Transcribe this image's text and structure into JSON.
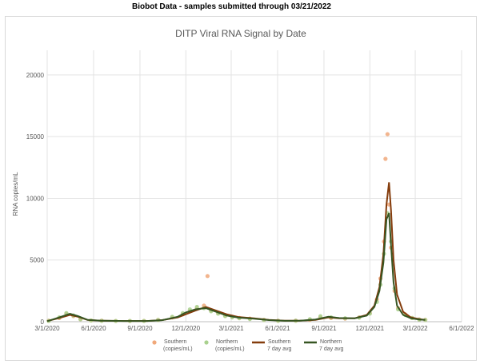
{
  "header": {
    "title": "Biobot Data - samples submitted through 03/21/2022"
  },
  "colors": {
    "southern_points": "#f0a87a",
    "northern_points": "#a9d18e",
    "southern_avg": "#843c0c",
    "northern_avg": "#375623",
    "gridline": "#e3e3e3",
    "axis_text": "#595959"
  },
  "chart_data": {
    "type": "line",
    "title": "DITP Viral RNA Signal by Date",
    "xlabel": "",
    "ylabel": "RNA copies/mL",
    "ylim": [
      0,
      22000
    ],
    "xlim": [
      "3/1/2020",
      "6/1/2022"
    ],
    "x_ticks": [
      "3/1/2020",
      "6/1/2020",
      "9/1/2020",
      "12/1/2020",
      "3/1/2021",
      "6/1/2021",
      "9/1/2021",
      "12/1/2021",
      "3/1/2022",
      "6/1/2022"
    ],
    "y_ticks": [
      "0",
      "5000",
      "10000",
      "15000",
      "20000"
    ],
    "grid": true,
    "legend_position": "bottom",
    "series": [
      {
        "name": "Southern (copies/mL)",
        "kind": "points",
        "x": [
          "3/4/2020",
          "3/25/2020",
          "4/8/2020",
          "4/22/2020",
          "5/6/2020",
          "5/27/2020",
          "6/17/2020",
          "7/15/2020",
          "8/12/2020",
          "9/9/2020",
          "10/7/2020",
          "11/4/2020",
          "11/25/2020",
          "12/9/2020",
          "12/23/2020",
          "1/6/2021",
          "1/13/2021",
          "1/20/2021",
          "2/3/2021",
          "2/17/2021",
          "3/3/2021",
          "3/17/2021",
          "4/7/2021",
          "5/5/2021",
          "6/2/2021",
          "7/7/2021",
          "8/4/2021",
          "8/25/2021",
          "9/15/2021",
          "10/13/2021",
          "11/10/2021",
          "12/1/2021",
          "12/15/2021",
          "12/22/2021",
          "12/29/2021",
          "1/1/2022",
          "1/5/2022",
          "1/8/2022",
          "1/12/2022",
          "1/19/2022",
          "1/26/2022",
          "2/9/2022",
          "2/23/2022",
          "3/9/2022",
          "3/21/2022"
        ],
        "values": [
          80,
          300,
          650,
          450,
          200,
          100,
          80,
          60,
          60,
          70,
          150,
          350,
          600,
          850,
          1100,
          1300,
          3700,
          900,
          700,
          500,
          400,
          300,
          250,
          150,
          80,
          80,
          150,
          350,
          300,
          250,
          350,
          700,
          1800,
          3500,
          6500,
          13200,
          15200,
          9500,
          6000,
          2500,
          1100,
          600,
          300,
          180,
          150
        ]
      },
      {
        "name": "Northern (copies/mL)",
        "kind": "points",
        "x": [
          "3/4/2020",
          "3/25/2020",
          "4/8/2020",
          "4/22/2020",
          "5/6/2020",
          "5/27/2020",
          "6/17/2020",
          "7/15/2020",
          "8/12/2020",
          "9/9/2020",
          "10/7/2020",
          "11/4/2020",
          "11/25/2020",
          "12/9/2020",
          "12/23/2020",
          "1/6/2021",
          "1/20/2021",
          "2/3/2021",
          "2/17/2021",
          "3/3/2021",
          "3/17/2021",
          "4/7/2021",
          "5/5/2021",
          "6/2/2021",
          "7/7/2021",
          "8/4/2021",
          "8/25/2021",
          "9/15/2021",
          "10/13/2021",
          "11/10/2021",
          "12/1/2021",
          "12/15/2021",
          "12/22/2021",
          "12/29/2021",
          "1/5/2022",
          "1/12/2022",
          "1/19/2022",
          "1/26/2022",
          "2/9/2022",
          "2/23/2022",
          "3/9/2022",
          "3/21/2022"
        ],
        "values": [
          60,
          350,
          700,
          500,
          200,
          100,
          70,
          60,
          60,
          60,
          140,
          400,
          700,
          1000,
          1200,
          1100,
          850,
          650,
          450,
          350,
          280,
          220,
          140,
          70,
          80,
          200,
          450,
          350,
          280,
          330,
          650,
          1600,
          3000,
          5500,
          8800,
          6500,
          2700,
          1000,
          550,
          300,
          170,
          140
        ]
      },
      {
        "name": "Southern 7 day avg",
        "kind": "line",
        "x": [
          "3/1/2020",
          "3/25/2020",
          "4/15/2020",
          "5/1/2020",
          "5/20/2020",
          "6/15/2020",
          "8/1/2020",
          "9/15/2020",
          "10/15/2020",
          "11/15/2020",
          "12/1/2020",
          "12/20/2020",
          "1/10/2021",
          "1/30/2021",
          "2/20/2021",
          "3/15/2021",
          "4/15/2021",
          "5/15/2021",
          "6/15/2021",
          "7/15/2021",
          "8/15/2021",
          "9/10/2021",
          "10/1/2021",
          "11/1/2021",
          "11/25/2021",
          "12/10/2021",
          "12/20/2021",
          "12/28/2021",
          "1/3/2022",
          "1/8/2022",
          "1/12/2022",
          "1/17/2022",
          "1/24/2022",
          "2/5/2022",
          "2/20/2022",
          "3/10/2022",
          "3/21/2022"
        ],
        "values": [
          50,
          300,
          550,
          400,
          150,
          80,
          60,
          60,
          130,
          350,
          600,
          900,
          1200,
          900,
          600,
          380,
          280,
          150,
          80,
          80,
          150,
          350,
          280,
          280,
          550,
          1300,
          2800,
          5500,
          9500,
          11300,
          9000,
          5000,
          2200,
          800,
          350,
          200,
          150
        ]
      },
      {
        "name": "Northern 7 day avg",
        "kind": "line",
        "x": [
          "3/1/2020",
          "3/25/2020",
          "4/15/2020",
          "5/1/2020",
          "5/20/2020",
          "6/15/2020",
          "8/1/2020",
          "9/15/2020",
          "10/15/2020",
          "11/15/2020",
          "12/1/2020",
          "12/20/2020",
          "1/10/2021",
          "1/30/2021",
          "2/20/2021",
          "3/15/2021",
          "4/15/2021",
          "5/15/2021",
          "6/15/2021",
          "7/15/2021",
          "8/15/2021",
          "9/10/2021",
          "10/1/2021",
          "11/1/2021",
          "11/25/2021",
          "12/10/2021",
          "12/20/2021",
          "12/28/2021",
          "1/3/2022",
          "1/8/2022",
          "1/12/2022",
          "1/17/2022",
          "1/24/2022",
          "2/5/2022",
          "2/20/2022",
          "3/10/2022",
          "3/21/2022"
        ],
        "values": [
          40,
          350,
          650,
          450,
          150,
          80,
          60,
          60,
          120,
          400,
          750,
          1000,
          1100,
          800,
          500,
          330,
          240,
          130,
          70,
          80,
          180,
          400,
          300,
          280,
          500,
          1200,
          2500,
          4800,
          8300,
          8800,
          6200,
          3200,
          1300,
          550,
          280,
          170,
          140
        ]
      }
    ],
    "legend": [
      {
        "label_line1": "Southern",
        "label_line2": "(copies/mL)"
      },
      {
        "label_line1": "Northern",
        "label_line2": "(copies/mL)"
      },
      {
        "label_line1": "Southern",
        "label_line2": "7 day avg"
      },
      {
        "label_line1": "Northern",
        "label_line2": "7 day avg"
      }
    ]
  }
}
